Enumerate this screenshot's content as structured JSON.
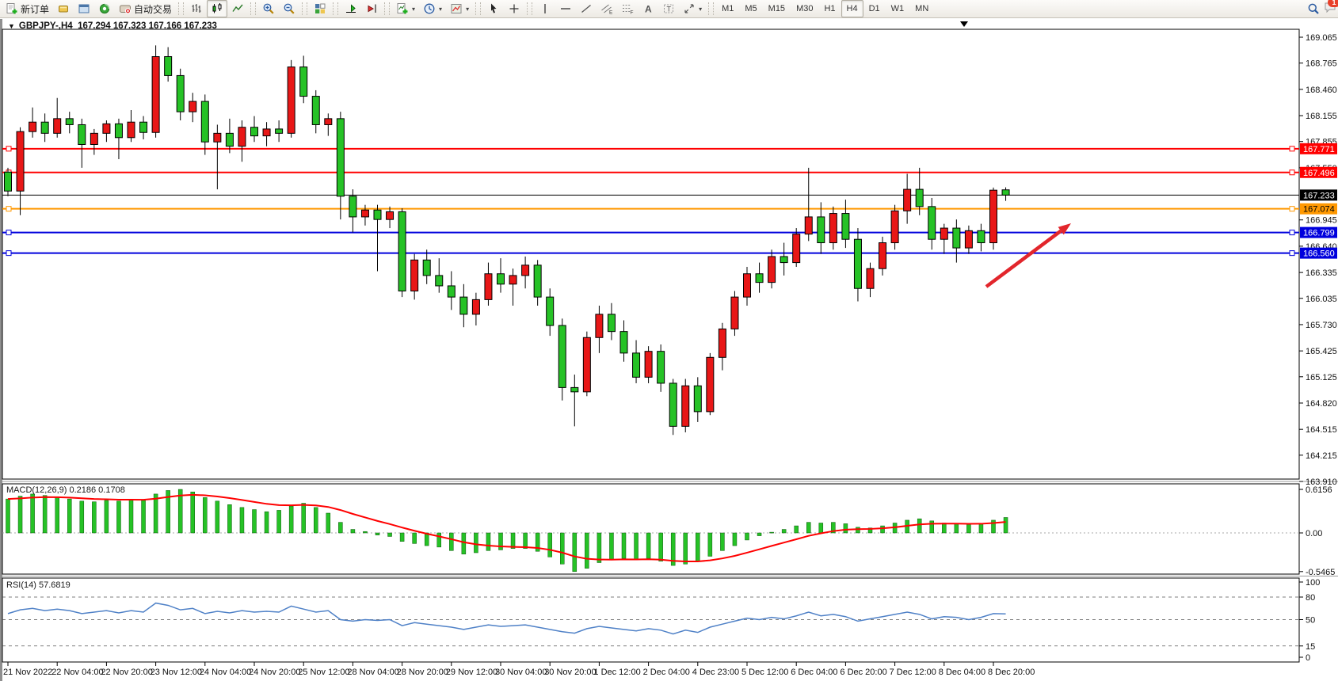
{
  "toolbar": {
    "new_order_label": "新订单",
    "autotrade_label": "自动交易",
    "notification_count": "1",
    "active_timeframe": "H4",
    "active_chart_type": "candlestick",
    "timeframes": [
      "M1",
      "M5",
      "M15",
      "M30",
      "H1",
      "H4",
      "D1",
      "W1",
      "MN"
    ],
    "groups": [
      {
        "items": [
          {
            "name": "new-order-button",
            "icon": "new-order",
            "label": "新订单"
          },
          {
            "name": "market-watch-button",
            "icon": "market-watch"
          },
          {
            "name": "navigator-button",
            "icon": "navigator"
          },
          {
            "name": "terminal-button",
            "icon": "terminal"
          },
          {
            "name": "autotrade-button",
            "icon": "autotrade",
            "label": "自动交易"
          }
        ]
      },
      {
        "items": [
          {
            "name": "bar-chart-button",
            "icon": "bar-chart"
          },
          {
            "name": "candlestick-button",
            "icon": "candlestick",
            "active": true
          },
          {
            "name": "line-chart-button",
            "icon": "line-chart"
          }
        ]
      },
      {
        "items": [
          {
            "name": "zoom-in-button",
            "icon": "zoom-in"
          },
          {
            "name": "zoom-out-button",
            "icon": "zoom-out"
          }
        ]
      },
      {
        "items": [
          {
            "name": "tile-windows-button",
            "icon": "tile-windows"
          }
        ]
      },
      {
        "items": [
          {
            "name": "auto-scroll-button",
            "icon": "auto-scroll"
          },
          {
            "name": "chart-shift-button",
            "icon": "chart-shift"
          }
        ]
      },
      {
        "items": [
          {
            "name": "new-chart-button",
            "icon": "new-chart",
            "caret": true
          },
          {
            "name": "periodicity-button",
            "icon": "periodicity",
            "caret": true
          },
          {
            "name": "template-button",
            "icon": "template",
            "caret": true
          }
        ]
      },
      {
        "items": [
          {
            "name": "cursor-button",
            "icon": "cursor"
          },
          {
            "name": "crosshair-button",
            "icon": "crosshair"
          }
        ]
      },
      {
        "items": [
          {
            "name": "vertical-line-button",
            "icon": "vline"
          },
          {
            "name": "horizontal-line-button",
            "icon": "hline"
          },
          {
            "name": "trendline-button",
            "icon": "trendline"
          },
          {
            "name": "channel-button",
            "icon": "channel"
          },
          {
            "name": "fibonacci-button",
            "icon": "fibonacci"
          },
          {
            "name": "text-button",
            "icon": "text"
          },
          {
            "name": "text-label-button",
            "icon": "label"
          },
          {
            "name": "arrows-button",
            "icon": "arrows",
            "caret": true
          }
        ]
      }
    ]
  },
  "chart": {
    "title_symbol_period": "GBPJPY-,H4",
    "title_ohlc": "167.294 167.323 167.166 167.233",
    "open": "167.294",
    "high": "167.323",
    "low": "167.166",
    "close": "167.233"
  },
  "chart_data": {
    "type": "candlestick",
    "symbol": "GBPJPY-",
    "timeframe": "H4",
    "bull_color": "#e81717",
    "bear_color": "#26c226",
    "wick_color": "#000000",
    "ylim": [
      163.91,
      169.065
    ],
    "grid": false,
    "price_ticks": [
      "169.065",
      "168.765",
      "168.460",
      "168.155",
      "167.855",
      "167.550",
      "166.945",
      "166.640",
      "166.335",
      "166.035",
      "165.730",
      "165.425",
      "165.125",
      "164.820",
      "164.515",
      "164.215",
      "163.910"
    ],
    "time_labels": [
      "21 Nov 2022",
      "22 Nov 04:00",
      "22 Nov 20:00",
      "23 Nov 12:00",
      "24 Nov 04:00",
      "24 Nov 20:00",
      "25 Nov 12:00",
      "28 Nov 04:00",
      "28 Nov 20:00",
      "29 Nov 12:00",
      "30 Nov 04:00",
      "30 Nov 20:00",
      "1 Dec 12:00",
      "2 Dec 04:00",
      "4 Dec 23:00",
      "5 Dec 12:00",
      "6 Dec 04:00",
      "6 Dec 20:00",
      "7 Dec 12:00",
      "8 Dec 04:00",
      "8 Dec 20:00"
    ],
    "current_price": {
      "value": 167.233,
      "label": "167.233",
      "chip_bg": "#000000",
      "chip_fg": "#ffffff"
    },
    "hlines": [
      {
        "value": 167.771,
        "label": "167.771",
        "color": "#ff0000",
        "chip_fg": "#ffffff"
      },
      {
        "value": 167.496,
        "label": "167.496",
        "color": "#ff0000",
        "chip_fg": "#ffffff"
      },
      {
        "value": 167.074,
        "label": "167.074",
        "color": "#ff9800",
        "chip_fg": "#000000"
      },
      {
        "value": 166.799,
        "label": "166.799",
        "color": "#0000dd",
        "chip_fg": "#ffffff"
      },
      {
        "value": 166.56,
        "label": "166.560",
        "color": "#0000dd",
        "chip_fg": "#ffffff"
      }
    ],
    "annotation_arrow": {
      "from_xy": [
        1245,
        362
      ],
      "to_xy": [
        1352,
        282
      ],
      "color": "#e2262c"
    },
    "candles": [
      [
        167.5,
        167.55,
        167.22,
        167.28
      ],
      [
        167.28,
        168.02,
        167.0,
        167.97
      ],
      [
        167.97,
        168.25,
        167.9,
        168.08
      ],
      [
        168.08,
        168.18,
        167.85,
        167.95
      ],
      [
        167.95,
        168.36,
        167.9,
        168.12
      ],
      [
        168.12,
        168.2,
        167.95,
        168.05
      ],
      [
        168.05,
        168.12,
        167.55,
        167.82
      ],
      [
        167.82,
        168.0,
        167.7,
        167.95
      ],
      [
        167.95,
        168.1,
        167.85,
        168.06
      ],
      [
        168.06,
        168.12,
        167.65,
        167.9
      ],
      [
        167.9,
        168.22,
        167.85,
        168.08
      ],
      [
        168.08,
        168.15,
        167.88,
        167.96
      ],
      [
        167.96,
        168.97,
        167.9,
        168.84
      ],
      [
        168.84,
        168.95,
        168.55,
        168.62
      ],
      [
        168.62,
        168.7,
        168.1,
        168.2
      ],
      [
        168.2,
        168.42,
        168.08,
        168.32
      ],
      [
        168.32,
        168.4,
        167.7,
        167.85
      ],
      [
        167.85,
        168.05,
        167.3,
        167.95
      ],
      [
        167.95,
        168.12,
        167.72,
        167.8
      ],
      [
        167.8,
        168.1,
        167.62,
        168.02
      ],
      [
        168.02,
        168.15,
        167.85,
        167.92
      ],
      [
        167.92,
        168.08,
        167.8,
        168.0
      ],
      [
        168.0,
        168.1,
        167.85,
        167.95
      ],
      [
        167.95,
        168.8,
        167.9,
        168.72
      ],
      [
        168.72,
        168.85,
        168.3,
        168.38
      ],
      [
        168.38,
        168.45,
        167.95,
        168.05
      ],
      [
        168.05,
        168.18,
        167.92,
        168.12
      ],
      [
        168.12,
        168.2,
        166.95,
        167.22
      ],
      [
        167.22,
        167.3,
        166.8,
        166.98
      ],
      [
        166.98,
        167.12,
        166.88,
        167.06
      ],
      [
        167.06,
        167.12,
        166.35,
        166.95
      ],
      [
        166.95,
        167.1,
        166.85,
        167.04
      ],
      [
        167.04,
        167.08,
        166.05,
        166.12
      ],
      [
        166.12,
        166.55,
        166.02,
        166.48
      ],
      [
        166.48,
        166.6,
        166.2,
        166.3
      ],
      [
        166.3,
        166.5,
        166.1,
        166.18
      ],
      [
        166.18,
        166.35,
        165.9,
        166.05
      ],
      [
        166.05,
        166.2,
        165.7,
        165.85
      ],
      [
        165.85,
        166.1,
        165.72,
        166.02
      ],
      [
        166.02,
        166.45,
        165.95,
        166.32
      ],
      [
        166.32,
        166.5,
        166.1,
        166.2
      ],
      [
        166.2,
        166.38,
        165.95,
        166.3
      ],
      [
        166.3,
        166.52,
        166.15,
        166.42
      ],
      [
        166.42,
        166.48,
        165.95,
        166.05
      ],
      [
        166.05,
        166.15,
        165.6,
        165.72
      ],
      [
        165.72,
        165.8,
        164.85,
        165.0
      ],
      [
        165.0,
        165.15,
        164.55,
        164.95
      ],
      [
        164.95,
        165.65,
        164.9,
        165.58
      ],
      [
        165.58,
        165.95,
        165.4,
        165.85
      ],
      [
        165.85,
        165.98,
        165.55,
        165.65
      ],
      [
        165.65,
        165.78,
        165.3,
        165.4
      ],
      [
        165.4,
        165.55,
        165.05,
        165.12
      ],
      [
        165.12,
        165.48,
        165.05,
        165.42
      ],
      [
        165.42,
        165.5,
        164.95,
        165.05
      ],
      [
        165.05,
        165.1,
        164.45,
        164.55
      ],
      [
        164.55,
        165.1,
        164.48,
        165.02
      ],
      [
        165.02,
        165.12,
        164.6,
        164.72
      ],
      [
        164.72,
        165.4,
        164.68,
        165.35
      ],
      [
        165.35,
        165.75,
        165.2,
        165.68
      ],
      [
        165.68,
        166.12,
        165.6,
        166.05
      ],
      [
        166.05,
        166.4,
        165.95,
        166.32
      ],
      [
        166.32,
        166.45,
        166.1,
        166.22
      ],
      [
        166.22,
        166.6,
        166.15,
        166.52
      ],
      [
        166.52,
        166.68,
        166.3,
        166.45
      ],
      [
        166.45,
        166.85,
        166.4,
        166.78
      ],
      [
        166.78,
        167.55,
        166.7,
        166.98
      ],
      [
        166.98,
        167.15,
        166.55,
        166.68
      ],
      [
        166.68,
        167.1,
        166.6,
        167.02
      ],
      [
        167.02,
        167.18,
        166.62,
        166.72
      ],
      [
        166.72,
        166.85,
        166.0,
        166.15
      ],
      [
        166.15,
        166.45,
        166.05,
        166.38
      ],
      [
        166.38,
        166.75,
        166.3,
        166.68
      ],
      [
        166.68,
        167.12,
        166.6,
        167.05
      ],
      [
        167.05,
        167.48,
        166.9,
        167.3
      ],
      [
        167.3,
        167.55,
        167.0,
        167.1
      ],
      [
        167.1,
        167.2,
        166.6,
        166.72
      ],
      [
        166.72,
        166.9,
        166.55,
        166.85
      ],
      [
        166.85,
        166.95,
        166.45,
        166.62
      ],
      [
        166.62,
        166.88,
        166.55,
        166.82
      ],
      [
        166.82,
        166.9,
        166.58,
        166.68
      ],
      [
        166.68,
        167.32,
        166.6,
        167.29
      ],
      [
        167.294,
        167.323,
        167.166,
        167.233
      ]
    ],
    "indicators": [
      {
        "name": "MACD",
        "params": "12,26,9",
        "label_text": "MACD(12,26,9) 0.2186 0.1708",
        "main_value": "0.2186",
        "signal_value": "0.1708",
        "axis_ticks": [
          "0.6156",
          "0.00",
          "-0.5465"
        ],
        "histogram_color": "#26c226",
        "signal_color": "#ff0000",
        "histogram": [
          0.48,
          0.52,
          0.55,
          0.53,
          0.5,
          0.48,
          0.45,
          0.44,
          0.46,
          0.45,
          0.47,
          0.46,
          0.55,
          0.6,
          0.6156,
          0.58,
          0.5,
          0.45,
          0.4,
          0.36,
          0.33,
          0.3,
          0.32,
          0.38,
          0.42,
          0.36,
          0.28,
          0.15,
          0.05,
          0.02,
          -0.03,
          -0.05,
          -0.12,
          -0.15,
          -0.18,
          -0.2,
          -0.25,
          -0.3,
          -0.28,
          -0.25,
          -0.24,
          -0.22,
          -0.22,
          -0.26,
          -0.34,
          -0.44,
          -0.5465,
          -0.5,
          -0.42,
          -0.38,
          -0.36,
          -0.38,
          -0.36,
          -0.4,
          -0.46,
          -0.44,
          -0.4,
          -0.33,
          -0.25,
          -0.18,
          -0.1,
          -0.04,
          0.01,
          0.05,
          0.1,
          0.15,
          0.14,
          0.15,
          0.13,
          0.08,
          0.07,
          0.1,
          0.14,
          0.18,
          0.2,
          0.17,
          0.14,
          0.13,
          0.12,
          0.13,
          0.18,
          0.2186
        ]
      },
      {
        "name": "RSI",
        "params": "14",
        "label_text": "RSI(14) 57.6819",
        "value": "57.6819",
        "axis_ticks": [
          "100",
          "80",
          "50",
          "15",
          "0"
        ],
        "levels": [
          80,
          50,
          15
        ],
        "line_color": "#4f81c7",
        "values": [
          58,
          63,
          65,
          62,
          64,
          62,
          58,
          60,
          62,
          59,
          62,
          60,
          72,
          69,
          63,
          65,
          58,
          61,
          59,
          62,
          60,
          61,
          60,
          68,
          64,
          60,
          62,
          50,
          48,
          50,
          49,
          50,
          42,
          46,
          44,
          42,
          40,
          37,
          40,
          43,
          41,
          42,
          43,
          40,
          37,
          34,
          32,
          38,
          41,
          39,
          37,
          35,
          38,
          36,
          31,
          36,
          33,
          40,
          44,
          48,
          52,
          50,
          53,
          51,
          55,
          60,
          55,
          57,
          54,
          48,
          51,
          54,
          57,
          60,
          57,
          51,
          54,
          53,
          50,
          53,
          58,
          57.68
        ]
      }
    ]
  }
}
